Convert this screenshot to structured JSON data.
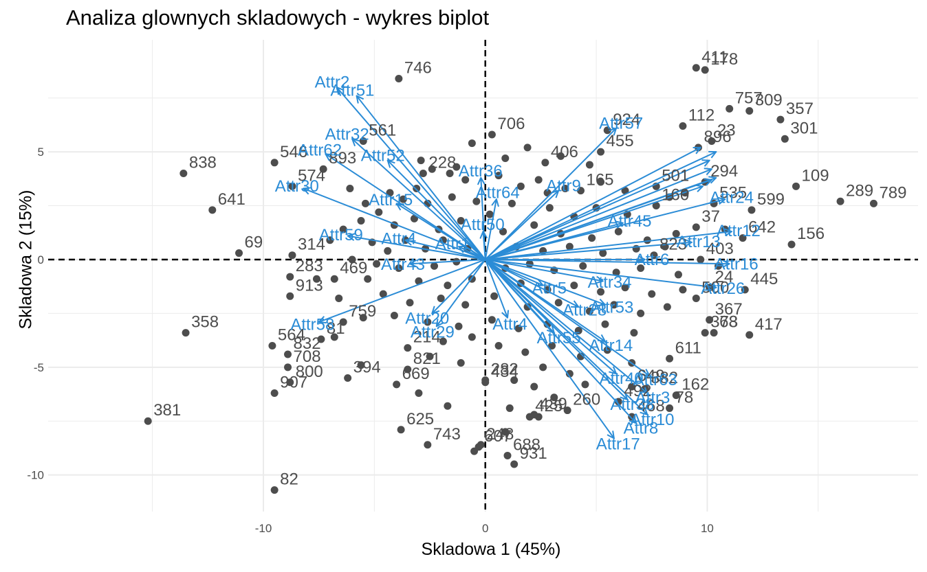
{
  "chart_data": {
    "type": "scatter",
    "title": "Analiza glownych skladowych - wykres biplot",
    "xlabel": "Skladowa 1 (45%)",
    "ylabel": "Skladowa 2 (15%)",
    "xlim": [
      -19.7,
      19.5
    ],
    "ylim": [
      -11.7,
      10.2
    ],
    "xticks": [
      -10,
      0,
      10
    ],
    "yticks": [
      -10,
      -5,
      0,
      5
    ],
    "grid": true,
    "colors": {
      "points": "#4d4d4d",
      "arrows": "#2b8cd6",
      "grid": "#ebebeb",
      "refline": "#000000"
    },
    "labeled_points": [
      {
        "label": "411",
        "x": 9.5,
        "y": 8.9
      },
      {
        "label": "178",
        "x": 9.9,
        "y": 8.8
      },
      {
        "label": "757",
        "x": 11.0,
        "y": 7.0
      },
      {
        "label": "309",
        "x": 11.9,
        "y": 6.9
      },
      {
        "label": "357",
        "x": 13.3,
        "y": 6.5
      },
      {
        "label": "301",
        "x": 13.5,
        "y": 5.6
      },
      {
        "label": "924",
        "x": 5.5,
        "y": 6.0
      },
      {
        "label": "112",
        "x": 8.9,
        "y": 6.2
      },
      {
        "label": "23",
        "x": 10.2,
        "y": 5.5
      },
      {
        "label": "896",
        "x": 9.6,
        "y": 5.2
      },
      {
        "label": "455",
        "x": 5.2,
        "y": 5.0
      },
      {
        "label": "706",
        "x": 0.3,
        "y": 5.8
      },
      {
        "label": "406",
        "x": 2.7,
        "y": 4.5
      },
      {
        "label": "165",
        "x": 4.3,
        "y": 3.2
      },
      {
        "label": "501",
        "x": 7.7,
        "y": 3.4
      },
      {
        "label": "294",
        "x": 9.9,
        "y": 3.6
      },
      {
        "label": "109",
        "x": 14.0,
        "y": 3.4
      },
      {
        "label": "599",
        "x": 12.0,
        "y": 2.3
      },
      {
        "label": "289",
        "x": 16.0,
        "y": 2.7
      },
      {
        "label": "789",
        "x": 17.5,
        "y": 2.6
      },
      {
        "label": "535",
        "x": 10.3,
        "y": 2.6
      },
      {
        "label": "160",
        "x": 7.7,
        "y": 2.5
      },
      {
        "label": "37",
        "x": 9.5,
        "y": 1.5
      },
      {
        "label": "642",
        "x": 11.6,
        "y": 1.0
      },
      {
        "label": "156",
        "x": 13.8,
        "y": 0.7
      },
      {
        "label": "403",
        "x": 9.7,
        "y": 0.0
      },
      {
        "label": "823",
        "x": 7.6,
        "y": 0.2
      },
      {
        "label": "445",
        "x": 11.7,
        "y": -1.4
      },
      {
        "label": "24",
        "x": 10.1,
        "y": -1.3
      },
      {
        "label": "500",
        "x": 9.5,
        "y": -1.8
      },
      {
        "label": "367",
        "x": 10.1,
        "y": -2.8
      },
      {
        "label": "373",
        "x": 9.9,
        "y": -3.4
      },
      {
        "label": "68",
        "x": 10.3,
        "y": -3.4
      },
      {
        "label": "417",
        "x": 11.9,
        "y": -3.5
      },
      {
        "label": "611",
        "x": 8.3,
        "y": -4.6
      },
      {
        "label": "162",
        "x": 8.6,
        "y": -6.3
      },
      {
        "label": "78",
        "x": 8.3,
        "y": -6.9
      },
      {
        "label": "382",
        "x": 7.2,
        "y": -6.0
      },
      {
        "label": "649",
        "x": 6.6,
        "y": -5.9
      },
      {
        "label": "492",
        "x": 6.0,
        "y": -6.6
      },
      {
        "label": "468",
        "x": 6.6,
        "y": -7.3
      },
      {
        "label": "260",
        "x": 3.7,
        "y": -7.0
      },
      {
        "label": "425",
        "x": 2.0,
        "y": -7.3
      },
      {
        "label": "439",
        "x": 2.2,
        "y": -7.2
      },
      {
        "label": "931",
        "x": 1.3,
        "y": -9.5
      },
      {
        "label": "688",
        "x": 1.0,
        "y": -9.1
      },
      {
        "label": "248",
        "x": -0.2,
        "y": -8.6
      },
      {
        "label": "607",
        "x": -0.3,
        "y": -8.7
      },
      {
        "label": "434",
        "x": 0.0,
        "y": -5.7
      },
      {
        "label": "282",
        "x": 0.0,
        "y": -5.6
      },
      {
        "label": "743",
        "x": -2.6,
        "y": -8.6
      },
      {
        "label": "625",
        "x": -3.8,
        "y": -7.9
      },
      {
        "label": "669",
        "x": -4.0,
        "y": -5.8
      },
      {
        "label": "821",
        "x": -3.5,
        "y": -5.1
      },
      {
        "label": "394",
        "x": -6.2,
        "y": -5.5
      },
      {
        "label": "214",
        "x": -3.5,
        "y": -4.1
      },
      {
        "label": "759",
        "x": -6.4,
        "y": -2.9
      },
      {
        "label": "81",
        "x": -7.4,
        "y": -3.7
      },
      {
        "label": "832",
        "x": -8.9,
        "y": -4.4
      },
      {
        "label": "564",
        "x": -9.6,
        "y": -4.0
      },
      {
        "label": "708",
        "x": -8.9,
        "y": -5.0
      },
      {
        "label": "907",
        "x": -9.5,
        "y": -6.2
      },
      {
        "label": "800",
        "x": -8.8,
        "y": -5.7
      },
      {
        "label": "358",
        "x": -13.5,
        "y": -3.4
      },
      {
        "label": "381",
        "x": -15.2,
        "y": -7.5
      },
      {
        "label": "82",
        "x": -9.5,
        "y": -10.7
      },
      {
        "label": "913",
        "x": -8.8,
        "y": -1.7
      },
      {
        "label": "469",
        "x": -6.8,
        "y": -0.9
      },
      {
        "label": "283",
        "x": -8.8,
        "y": -0.8
      },
      {
        "label": "69",
        "x": -11.1,
        "y": 0.3
      },
      {
        "label": "314",
        "x": -8.7,
        "y": 0.2
      },
      {
        "label": "641",
        "x": -12.3,
        "y": 2.3
      },
      {
        "label": "838",
        "x": -13.6,
        "y": 4.0
      },
      {
        "label": "574",
        "x": -8.7,
        "y": 3.4
      },
      {
        "label": "546",
        "x": -9.5,
        "y": 4.5
      },
      {
        "label": "893",
        "x": -7.3,
        "y": 4.2
      },
      {
        "label": "561",
        "x": -5.5,
        "y": 5.5
      },
      {
        "label": "746",
        "x": -3.9,
        "y": 8.4
      },
      {
        "label": "228",
        "x": -2.8,
        "y": 4.0
      }
    ],
    "unlabeled_points": [
      {
        "x": -2.4,
        "y": 4.2
      },
      {
        "x": -1.6,
        "y": 4.0
      },
      {
        "x": -0.9,
        "y": 3.7
      },
      {
        "x": 0.6,
        "y": 3.9
      },
      {
        "x": 1.6,
        "y": 3.4
      },
      {
        "x": 2.8,
        "y": 3.1
      },
      {
        "x": 3.6,
        "y": 3.3
      },
      {
        "x": 5.2,
        "y": 3.6
      },
      {
        "x": 6.3,
        "y": 3.2
      },
      {
        "x": 8.3,
        "y": 2.9
      },
      {
        "x": 9.0,
        "y": 3.1
      },
      {
        "x": 2.9,
        "y": 2.4
      },
      {
        "x": 4.0,
        "y": 2.0
      },
      {
        "x": 5.0,
        "y": 2.4
      },
      {
        "x": 6.4,
        "y": 2.1
      },
      {
        "x": 1.2,
        "y": 2.6
      },
      {
        "x": -4.3,
        "y": 3.1
      },
      {
        "x": -3.7,
        "y": 2.8
      },
      {
        "x": -3.1,
        "y": 3.3
      },
      {
        "x": -5.4,
        "y": 2.6
      },
      {
        "x": -6.1,
        "y": 3.3
      },
      {
        "x": -4.8,
        "y": 2.2
      },
      {
        "x": -2.6,
        "y": 2.6
      },
      {
        "x": -1.5,
        "y": 2.9
      },
      {
        "x": -0.4,
        "y": 2.7
      },
      {
        "x": 0.2,
        "y": 2.1
      },
      {
        "x": -5.6,
        "y": 1.8
      },
      {
        "x": -4.1,
        "y": 1.6
      },
      {
        "x": -3.2,
        "y": 1.9
      },
      {
        "x": -2.1,
        "y": 1.4
      },
      {
        "x": -1.1,
        "y": 1.8
      },
      {
        "x": 0.8,
        "y": 1.3
      },
      {
        "x": 2.2,
        "y": 1.6
      },
      {
        "x": 3.4,
        "y": 1.2
      },
      {
        "x": 4.8,
        "y": 1.0
      },
      {
        "x": 6.0,
        "y": 1.3
      },
      {
        "x": 7.3,
        "y": 0.9
      },
      {
        "x": 8.6,
        "y": 1.2
      },
      {
        "x": 10.8,
        "y": 1.4
      },
      {
        "x": -6.4,
        "y": 1.4
      },
      {
        "x": -7.0,
        "y": 0.9
      },
      {
        "x": -5.1,
        "y": 0.8
      },
      {
        "x": -4.4,
        "y": 0.4
      },
      {
        "x": -3.6,
        "y": 0.9
      },
      {
        "x": -2.7,
        "y": 0.5
      },
      {
        "x": -1.9,
        "y": 0.9
      },
      {
        "x": -0.8,
        "y": 0.5
      },
      {
        "x": 1.4,
        "y": 0.6
      },
      {
        "x": 2.6,
        "y": 0.4
      },
      {
        "x": 3.8,
        "y": 0.6
      },
      {
        "x": 5.3,
        "y": 0.3
      },
      {
        "x": 6.8,
        "y": 0.5
      },
      {
        "x": 8.1,
        "y": 0.6
      },
      {
        "x": -6.0,
        "y": 0.0
      },
      {
        "x": -4.9,
        "y": -0.2
      },
      {
        "x": -3.9,
        "y": -0.4
      },
      {
        "x": -2.3,
        "y": -0.3
      },
      {
        "x": -1.3,
        "y": -0.1
      },
      {
        "x": 0.9,
        "y": -0.4
      },
      {
        "x": 2.0,
        "y": -0.2
      },
      {
        "x": 3.1,
        "y": -0.5
      },
      {
        "x": 4.4,
        "y": -0.3
      },
      {
        "x": 5.9,
        "y": -0.6
      },
      {
        "x": 7.0,
        "y": -0.4
      },
      {
        "x": 8.7,
        "y": -0.7
      },
      {
        "x": 10.5,
        "y": -0.3
      },
      {
        "x": -7.6,
        "y": -0.9
      },
      {
        "x": -5.3,
        "y": -0.9
      },
      {
        "x": -3.0,
        "y": -1.0
      },
      {
        "x": -1.7,
        "y": -1.2
      },
      {
        "x": -0.6,
        "y": -0.9
      },
      {
        "x": 1.6,
        "y": -1.1
      },
      {
        "x": 2.8,
        "y": -1.4
      },
      {
        "x": 4.0,
        "y": -1.2
      },
      {
        "x": 5.2,
        "y": -1.5
      },
      {
        "x": 6.3,
        "y": -1.3
      },
      {
        "x": 7.5,
        "y": -1.6
      },
      {
        "x": 8.9,
        "y": -1.4
      },
      {
        "x": -6.6,
        "y": -1.8
      },
      {
        "x": -4.6,
        "y": -1.6
      },
      {
        "x": -3.4,
        "y": -2.0
      },
      {
        "x": -2.0,
        "y": -1.8
      },
      {
        "x": -0.9,
        "y": -2.1
      },
      {
        "x": 0.4,
        "y": -1.7
      },
      {
        "x": 1.9,
        "y": -2.2
      },
      {
        "x": 3.3,
        "y": -2.0
      },
      {
        "x": 4.7,
        "y": -2.4
      },
      {
        "x": 5.8,
        "y": -2.1
      },
      {
        "x": 7.0,
        "y": -2.5
      },
      {
        "x": 8.2,
        "y": -2.2
      },
      {
        "x": -5.5,
        "y": -2.7
      },
      {
        "x": -4.1,
        "y": -2.6
      },
      {
        "x": -2.6,
        "y": -2.9
      },
      {
        "x": -1.2,
        "y": -3.1
      },
      {
        "x": 0.3,
        "y": -2.8
      },
      {
        "x": 1.5,
        "y": -3.2
      },
      {
        "x": 2.8,
        "y": -3.0
      },
      {
        "x": 4.2,
        "y": -3.3
      },
      {
        "x": 5.4,
        "y": -3.0
      },
      {
        "x": 6.7,
        "y": -3.4
      },
      {
        "x": -1.9,
        "y": -3.8
      },
      {
        "x": -0.6,
        "y": -3.6
      },
      {
        "x": 0.6,
        "y": -4.0
      },
      {
        "x": 1.8,
        "y": -4.3
      },
      {
        "x": 3.0,
        "y": -4.0
      },
      {
        "x": 4.3,
        "y": -4.5
      },
      {
        "x": 5.5,
        "y": -4.2
      },
      {
        "x": 6.6,
        "y": -4.8
      },
      {
        "x": -2.5,
        "y": -4.5
      },
      {
        "x": -1.1,
        "y": -4.8
      },
      {
        "x": 2.6,
        "y": -5.0
      },
      {
        "x": 3.8,
        "y": -5.3
      },
      {
        "x": 1.3,
        "y": -5.6
      },
      {
        "x": 2.2,
        "y": -5.9
      },
      {
        "x": 4.5,
        "y": -5.8
      },
      {
        "x": 3.1,
        "y": -6.4
      },
      {
        "x": 1.1,
        "y": -6.9
      },
      {
        "x": 2.4,
        "y": -7.3
      },
      {
        "x": 0.9,
        "y": -8.0
      },
      {
        "x": -0.5,
        "y": -8.9
      },
      {
        "x": -1.7,
        "y": -6.8
      },
      {
        "x": -3.0,
        "y": -6.2
      },
      {
        "x": -5.6,
        "y": -4.9
      },
      {
        "x": -6.8,
        "y": -3.6
      },
      {
        "x": -2.9,
        "y": 4.6
      },
      {
        "x": -1.3,
        "y": 4.3
      },
      {
        "x": 0.9,
        "y": 4.7
      },
      {
        "x": 1.9,
        "y": 5.2
      },
      {
        "x": 2.4,
        "y": 3.7
      },
      {
        "x": -0.6,
        "y": 5.4
      },
      {
        "x": 4.7,
        "y": 4.4
      },
      {
        "x": 3.4,
        "y": 4.8
      }
    ],
    "arrows": [
      {
        "label": "Attr2",
        "x": -6.7,
        "y": 8.0
      },
      {
        "label": "Attr51",
        "x": -5.8,
        "y": 7.6
      },
      {
        "label": "Attr32",
        "x": -6.0,
        "y": 5.6
      },
      {
        "label": "Attr62",
        "x": -7.2,
        "y": 4.9
      },
      {
        "label": "Attr52",
        "x": -4.4,
        "y": 4.6
      },
      {
        "label": "Attr30",
        "x": -8.2,
        "y": 3.3
      },
      {
        "label": "Attr15",
        "x": -4.0,
        "y": 2.6
      },
      {
        "label": "Attr59",
        "x": -6.2,
        "y": 1.1
      },
      {
        "label": "Attr4",
        "x": -3.6,
        "y": 0.9
      },
      {
        "label": "Attr43",
        "x": -3.4,
        "y": -0.2
      },
      {
        "label": "Attr1",
        "x": -1.2,
        "y": 0.6
      },
      {
        "label": "Attr58",
        "x": -7.5,
        "y": -2.9
      },
      {
        "label": "Attr20",
        "x": -2.4,
        "y": -2.5
      },
      {
        "label": "Attr29",
        "x": -2.2,
        "y": -3.1
      },
      {
        "label": "Attr36",
        "x": -0.2,
        "y": 3.8
      },
      {
        "label": "Attr64",
        "x": 0.5,
        "y": 2.8
      },
      {
        "label": "Attr50",
        "x": -0.1,
        "y": 1.3
      },
      {
        "label": "Attr9",
        "x": 3.3,
        "y": 3.2
      },
      {
        "label": "Attr57",
        "x": 5.9,
        "y": 6.1
      },
      {
        "label": "Attr45",
        "x": 6.2,
        "y": 1.7
      },
      {
        "label": "Attr24",
        "x": 10.8,
        "y": 2.8
      },
      {
        "label": "Attr12",
        "x": 11.1,
        "y": 1.3
      },
      {
        "label": "Attr13",
        "x": 9.3,
        "y": 0.8
      },
      {
        "label": "Attr6",
        "x": 7.2,
        "y": 0.0
      },
      {
        "label": "Attr16",
        "x": 11.0,
        "y": -0.2
      },
      {
        "label": "Attr26",
        "x": 10.4,
        "y": -1.3
      },
      {
        "label": "Attr34",
        "x": 5.3,
        "y": -1.0
      },
      {
        "label": "Attr53",
        "x": 5.4,
        "y": -2.1
      },
      {
        "label": "Attr5",
        "x": 2.6,
        "y": -1.2
      },
      {
        "label": "Attr28",
        "x": 4.2,
        "y": -2.2
      },
      {
        "label": "Attr4",
        "x": 1.0,
        "y": -2.7
      },
      {
        "label": "Attr55",
        "x": 3.1,
        "y": -3.4
      },
      {
        "label": "Attr14",
        "x": 5.4,
        "y": -3.8
      },
      {
        "label": "Attr63",
        "x": 7.4,
        "y": -5.4
      },
      {
        "label": "Attr40",
        "x": 5.9,
        "y": -5.3
      },
      {
        "label": "Attr38",
        "x": 6.4,
        "y": -6.5
      },
      {
        "label": "Attr3",
        "x": 7.3,
        "y": -6.2
      },
      {
        "label": "Attr10",
        "x": 7.3,
        "y": -7.2
      },
      {
        "label": "Attr17",
        "x": 5.8,
        "y": -8.3
      },
      {
        "label": "Attr8",
        "x": 6.8,
        "y": -7.6
      },
      {
        "label": "",
        "x": 9.7,
        "y": 5.2
      },
      {
        "label": "",
        "x": 10.4,
        "y": 5.0
      },
      {
        "label": "",
        "x": 10.1,
        "y": 4.6
      },
      {
        "label": "",
        "x": 10.2,
        "y": 4.2
      },
      {
        "label": "",
        "x": 10.2,
        "y": 3.7
      },
      {
        "label": "",
        "x": 9.8,
        "y": 3.4
      },
      {
        "label": "",
        "x": 10.4,
        "y": 3.8
      }
    ]
  }
}
